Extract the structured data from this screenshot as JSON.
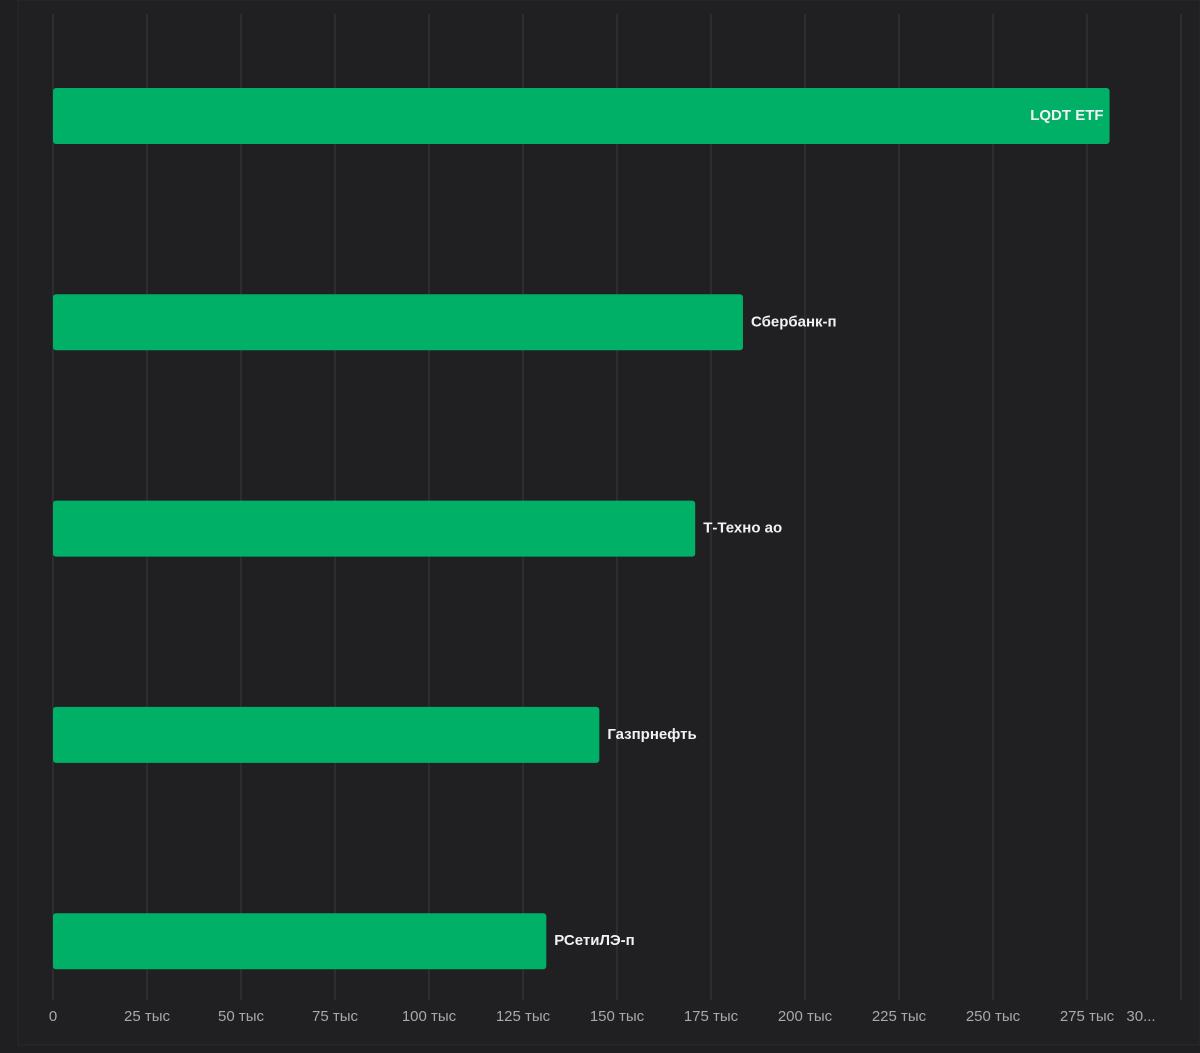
{
  "chart_data": {
    "type": "hbar",
    "categories": [
      "LQDT ETF",
      "Сбербанк-п",
      "Т-Техно ао",
      "Газпрнефть",
      "РСетиЛЭ-п"
    ],
    "values": [
      281000,
      183500,
      170800,
      145300,
      131200
    ],
    "color": "#00b066",
    "xlim": [
      0,
      300000
    ],
    "xticks": [
      0,
      {
        "value": 25000,
        "label": "25 тыс"
      },
      {
        "value": 50000,
        "label": "50 тыс"
      },
      {
        "value": 75000,
        "label": "75 тыс"
      },
      {
        "value": 100000,
        "label": "100 тыс"
      },
      {
        "value": 125000,
        "label": "125 тыс"
      },
      {
        "value": 150000,
        "label": "150 тыс"
      },
      {
        "value": 175000,
        "label": "175 тыс"
      },
      {
        "value": 200000,
        "label": "200 тыс"
      },
      {
        "value": 225000,
        "label": "225 тыс"
      },
      {
        "value": 250000,
        "label": "250 тыс"
      },
      {
        "value": 275000,
        "label": "275 тыс"
      },
      {
        "value": 300000,
        "label": "30..."
      }
    ],
    "grid": true
  }
}
